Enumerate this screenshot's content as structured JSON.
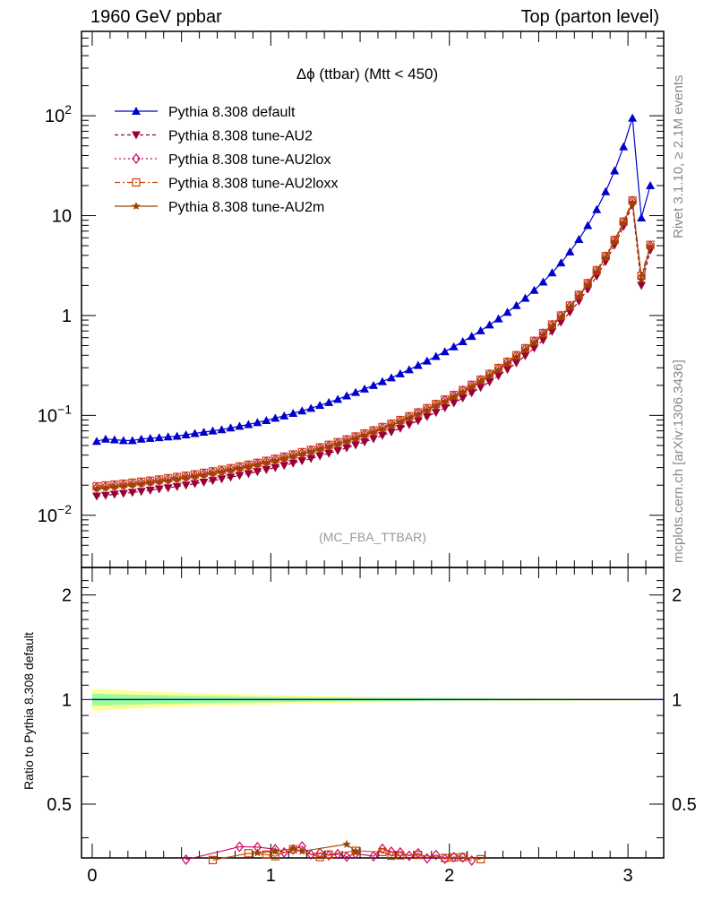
{
  "header": {
    "left": "1960 GeV ppbar",
    "right": "Top (parton level)"
  },
  "side_labels": {
    "rivet": "Rivet 3.1.10, ≥ 2.1M events",
    "mcplots": "mcplots.cern.ch [arXiv:1306.3436]"
  },
  "chart_data": [
    {
      "type": "line",
      "title": "Δϕ (ttbar) (Mtt < 450)",
      "watermark": "(MC_FBA_TTBAR)",
      "yscale": "log",
      "xlim": [
        -0.06,
        3.2
      ],
      "ylim": [
        0.003,
        700
      ],
      "yticks": [
        {
          "value": 0.01,
          "label": "10^-2"
        },
        {
          "value": 0.1,
          "label": "10^-1"
        },
        {
          "value": 1,
          "label": "1"
        },
        {
          "value": 10,
          "label": "10"
        },
        {
          "value": 100,
          "label": "10^2"
        }
      ],
      "legend_position": "top-left",
      "x": [
        0.025,
        0.075,
        0.125,
        0.175,
        0.225,
        0.275,
        0.325,
        0.375,
        0.425,
        0.475,
        0.525,
        0.575,
        0.625,
        0.675,
        0.725,
        0.775,
        0.825,
        0.875,
        0.925,
        0.975,
        1.025,
        1.075,
        1.125,
        1.175,
        1.225,
        1.275,
        1.325,
        1.375,
        1.425,
        1.475,
        1.525,
        1.575,
        1.625,
        1.675,
        1.725,
        1.775,
        1.825,
        1.875,
        1.925,
        1.975,
        2.025,
        2.075,
        2.125,
        2.175,
        2.225,
        2.275,
        2.325,
        2.375,
        2.425,
        2.475,
        2.525,
        2.575,
        2.625,
        2.675,
        2.725,
        2.775,
        2.825,
        2.875,
        2.925,
        2.975,
        3.025,
        3.075,
        3.125
      ],
      "series": [
        {
          "name": "Pythia 8.308 default",
          "color": "#0000cc",
          "marker": "triangle-up",
          "dash": "",
          "values": [
            0.055,
            0.058,
            0.057,
            0.056,
            0.056,
            0.058,
            0.059,
            0.06,
            0.061,
            0.062,
            0.064,
            0.066,
            0.068,
            0.07,
            0.072,
            0.075,
            0.078,
            0.081,
            0.085,
            0.089,
            0.094,
            0.099,
            0.105,
            0.111,
            0.118,
            0.126,
            0.135,
            0.145,
            0.157,
            0.17,
            0.184,
            0.2,
            0.218,
            0.238,
            0.261,
            0.287,
            0.317,
            0.351,
            0.39,
            0.435,
            0.487,
            0.548,
            0.62,
            0.705,
            0.806,
            0.928,
            1.08,
            1.26,
            1.49,
            1.79,
            2.17,
            2.68,
            3.37,
            4.35,
            5.79,
            7.98,
            11.5,
            17.4,
            28.1,
            49.0,
            95.0,
            9.5,
            20.0
          ]
        },
        {
          "name": "Pythia 8.308 tune-AU2",
          "color": "#990033",
          "marker": "triangle-down",
          "dash": "4,3",
          "values": [
            0.0155,
            0.0158,
            0.0162,
            0.0165,
            0.0169,
            0.0173,
            0.0178,
            0.0183,
            0.0188,
            0.0194,
            0.02,
            0.0207,
            0.0214,
            0.0222,
            0.0231,
            0.024,
            0.025,
            0.0261,
            0.0273,
            0.0286,
            0.03,
            0.0315,
            0.0332,
            0.035,
            0.037,
            0.0392,
            0.0416,
            0.0443,
            0.0472,
            0.0505,
            0.0542,
            0.0583,
            0.0629,
            0.0681,
            0.074,
            0.0807,
            0.0884,
            0.0972,
            0.107,
            0.119,
            0.133,
            0.149,
            0.168,
            0.19,
            0.217,
            0.249,
            0.288,
            0.336,
            0.396,
            0.471,
            0.567,
            0.692,
            0.858,
            1.08,
            1.39,
            1.83,
            2.48,
            3.47,
            5.07,
            7.8,
            12.8,
            2.0,
            4.5
          ]
        },
        {
          "name": "Pythia 8.308 tune-AU2lox",
          "color": "#cc0066",
          "marker": "diamond",
          "dash": "2,3",
          "values": [
            0.019,
            0.0194,
            0.0198,
            0.0202,
            0.0207,
            0.0212,
            0.0217,
            0.0223,
            0.0229,
            0.0236,
            0.0243,
            0.0251,
            0.026,
            0.0269,
            0.0279,
            0.029,
            0.0302,
            0.0315,
            0.0329,
            0.0344,
            0.0361,
            0.0379,
            0.0399,
            0.042,
            0.0444,
            0.047,
            0.0498,
            0.053,
            0.0565,
            0.0604,
            0.0648,
            0.0697,
            0.0752,
            0.0814,
            0.0884,
            0.0964,
            0.106,
            0.116,
            0.128,
            0.142,
            0.158,
            0.177,
            0.199,
            0.225,
            0.257,
            0.294,
            0.34,
            0.395,
            0.464,
            0.55,
            0.66,
            0.802,
            0.99,
            1.24,
            1.59,
            2.08,
            2.8,
            3.89,
            5.64,
            8.6,
            14.0,
            2.4,
            5.0
          ]
        },
        {
          "name": "Pythia 8.308 tune-AU2loxx",
          "color": "#cc4400",
          "marker": "square-open",
          "dash": "6,3,2,3",
          "values": [
            0.0195,
            0.0199,
            0.0203,
            0.0207,
            0.0212,
            0.0217,
            0.0222,
            0.0228,
            0.0235,
            0.0242,
            0.0249,
            0.0257,
            0.0266,
            0.0275,
            0.0285,
            0.0296,
            0.0308,
            0.0321,
            0.0335,
            0.0351,
            0.0368,
            0.0386,
            0.0406,
            0.0428,
            0.0452,
            0.0478,
            0.0507,
            0.0539,
            0.0575,
            0.0614,
            0.0659,
            0.0708,
            0.0764,
            0.0827,
            0.0898,
            0.0979,
            0.107,
            0.118,
            0.13,
            0.144,
            0.16,
            0.179,
            0.202,
            0.228,
            0.26,
            0.298,
            0.344,
            0.4,
            0.47,
            0.557,
            0.668,
            0.812,
            1.0,
            1.26,
            1.61,
            2.11,
            2.84,
            3.94,
            5.71,
            8.71,
            14.2,
            2.5,
            5.1
          ]
        },
        {
          "name": "Pythia 8.308 tune-AU2m",
          "color": "#994400",
          "marker": "star",
          "dash": "",
          "values": [
            0.0185,
            0.0189,
            0.0193,
            0.0197,
            0.0202,
            0.0206,
            0.0212,
            0.0217,
            0.0223,
            0.023,
            0.0237,
            0.0245,
            0.0253,
            0.0262,
            0.0272,
            0.0283,
            0.0294,
            0.0307,
            0.0321,
            0.0336,
            0.0352,
            0.037,
            0.0389,
            0.041,
            0.0433,
            0.0458,
            0.0486,
            0.0517,
            0.0551,
            0.0589,
            0.0632,
            0.0679,
            0.0733,
            0.0793,
            0.0861,
            0.0939,
            0.103,
            0.113,
            0.125,
            0.138,
            0.154,
            0.172,
            0.194,
            0.219,
            0.25,
            0.286,
            0.331,
            0.385,
            0.452,
            0.536,
            0.643,
            0.781,
            0.964,
            1.21,
            1.55,
            2.03,
            2.73,
            3.79,
            5.5,
            8.38,
            13.6,
            2.3,
            4.9
          ]
        }
      ]
    },
    {
      "type": "line",
      "ylabel": "Ratio to Pythia 8.308 default",
      "xlim": [
        -0.06,
        3.2
      ],
      "ylim": [
        0.35,
        2.4
      ],
      "yscale": "log",
      "yticks": [
        {
          "value": 0.5,
          "label": "0.5"
        },
        {
          "value": 1,
          "label": "1"
        },
        {
          "value": 2,
          "label": "2"
        }
      ],
      "xticks": [
        {
          "value": 0,
          "label": "0"
        },
        {
          "value": 1,
          "label": "1"
        },
        {
          "value": 2,
          "label": "2"
        },
        {
          "value": 3,
          "label": "3"
        }
      ],
      "ratio_points": [
        {
          "series": 2,
          "x": [
            0.525,
            0.825,
            0.925,
            1.025,
            1.075,
            1.125,
            1.175,
            1.225,
            1.275,
            1.325,
            1.375,
            1.425,
            1.475,
            1.575,
            1.625,
            1.675,
            1.725,
            1.775,
            1.825,
            1.875,
            1.925,
            1.975,
            2.025,
            2.075,
            2.125
          ],
          "y": [
            0.346,
            0.377,
            0.376,
            0.371,
            0.363,
            0.37,
            0.378,
            0.358,
            0.362,
            0.356,
            0.359,
            0.353,
            0.36,
            0.354,
            0.372,
            0.365,
            0.363,
            0.355,
            0.361,
            0.349,
            0.357,
            0.348,
            0.352,
            0.351,
            0.344
          ]
        },
        {
          "series": 3,
          "x": [
            0.675,
            0.875,
            0.975,
            1.025,
            1.125,
            1.275,
            1.325,
            1.475,
            1.625,
            1.675,
            1.725,
            1.825,
            1.975,
            2.025,
            2.075,
            2.175
          ],
          "y": [
            0.345,
            0.361,
            0.358,
            0.354,
            0.371,
            0.352,
            0.358,
            0.367,
            0.364,
            0.355,
            0.356,
            0.357,
            0.35,
            0.351,
            0.352,
            0.347
          ]
        },
        {
          "series": 4,
          "x": [
            0.925,
            1.025,
            1.125,
            1.175,
            1.425,
            1.475
          ],
          "y": [
            0.362,
            0.366,
            0.372,
            0.366,
            0.383,
            0.366
          ]
        }
      ],
      "ratio_line": 1.0
    }
  ]
}
